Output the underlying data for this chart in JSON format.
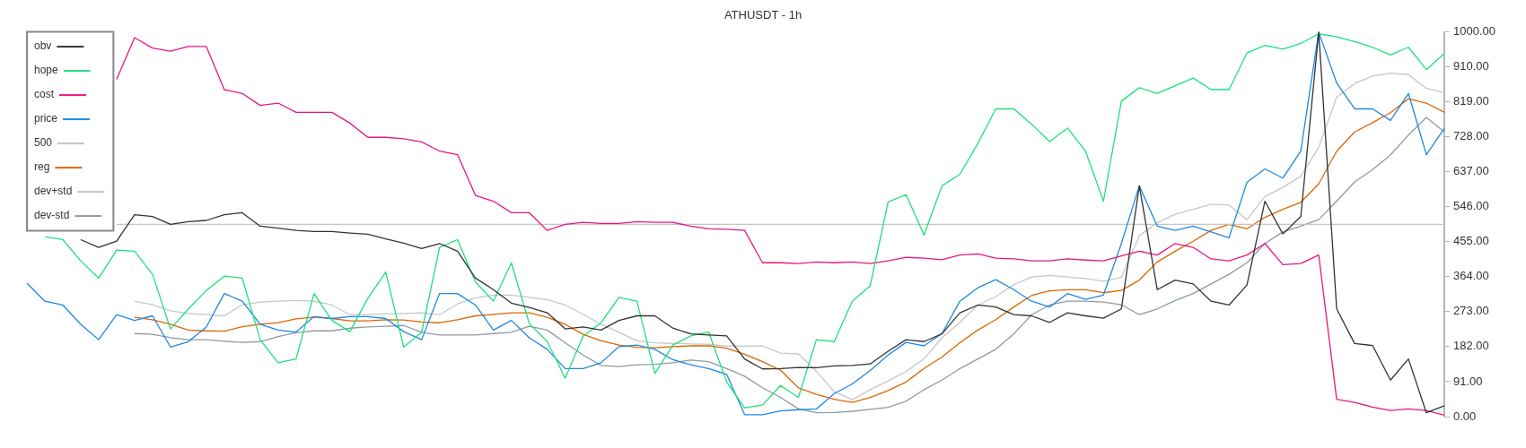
{
  "chart_data": {
    "type": "line",
    "title": "ATHUSDT - 1h",
    "categories": [
      null,
      null,
      null,
      null,
      null,
      null,
      null,
      null,
      null,
      null,
      null,
      null,
      null,
      null,
      null,
      null,
      null,
      null,
      null,
      null,
      null,
      null,
      null,
      null,
      null,
      null,
      null,
      null,
      null,
      null,
      null,
      null,
      null,
      null,
      null,
      null,
      null,
      null,
      null,
      null,
      null,
      null,
      null,
      null,
      null,
      null,
      null,
      null,
      null,
      null,
      null,
      null,
      null,
      null,
      null,
      null,
      null,
      null,
      null,
      null,
      null,
      null,
      null,
      null,
      null,
      null,
      null,
      null,
      null,
      null,
      null,
      null,
      null,
      null,
      null,
      null,
      null,
      null,
      null,
      null
    ],
    "series": [
      {
        "name": "obv",
        "color": "#333333",
        "values": [
          null,
          null,
          null,
          460,
          440,
          456,
          525,
          520,
          500,
          507,
          510,
          525,
          530,
          495,
          490,
          484,
          481,
          481,
          477,
          474,
          462,
          451,
          437,
          450,
          430,
          360,
          330,
          295,
          284,
          270,
          228,
          233,
          225,
          250,
          262,
          262,
          230,
          215,
          212,
          210,
          150,
          124,
          125,
          128,
          127,
          132,
          133,
          137,
          170,
          200,
          195,
          215,
          270,
          290,
          285,
          265,
          262,
          245,
          270,
          262,
          256,
          280,
          600,
          330,
          355,
          345,
          300,
          290,
          342,
          560,
          475,
          520,
          1000,
          280,
          190,
          185,
          95,
          150,
          10,
          28
        ]
      },
      {
        "name": "hope",
        "color": "#1fe07a",
        "values": [
          null,
          467,
          460,
          405,
          360,
          433,
          430,
          370,
          228,
          280,
          328,
          365,
          360,
          200,
          140,
          150,
          320,
          250,
          221,
          307,
          376,
          181,
          219,
          440,
          460,
          350,
          300,
          400,
          242,
          195,
          100,
          209,
          244,
          310,
          300,
          112,
          186,
          210,
          220,
          90,
          23,
          30,
          81,
          50,
          200,
          195,
          300,
          340,
          558,
          577,
          472,
          600,
          630,
          710,
          800,
          800,
          760,
          715,
          750,
          690,
          560,
          820,
          855,
          840,
          860,
          880,
          850,
          850,
          945,
          965,
          955,
          970,
          995,
          987,
          975,
          960,
          940,
          960,
          902,
          944
        ]
      },
      {
        "name": "cost",
        "color": "#e8177f",
        "values": [
          null,
          null,
          null,
          null,
          null,
          877,
          985,
          958,
          950,
          962,
          962,
          850,
          840,
          809,
          815,
          791,
          791,
          791,
          763,
          726,
          726,
          722,
          714,
          690,
          681,
          575,
          560,
          530,
          530,
          484,
          500,
          505,
          502,
          502,
          507,
          505,
          505,
          495,
          488,
          487,
          484,
          400,
          400,
          398,
          402,
          400,
          402,
          398,
          405,
          414,
          412,
          408,
          420,
          423,
          412,
          410,
          405,
          405,
          410,
          407,
          405,
          418,
          430,
          420,
          450,
          440,
          410,
          405,
          420,
          450,
          395,
          398,
          420,
          45,
          37,
          25,
          16,
          20,
          16,
          4
        ]
      },
      {
        "name": "price",
        "color": "#1e88e5",
        "values": [
          347,
          300,
          290,
          240,
          200,
          265,
          250,
          262,
          181,
          195,
          233,
          320,
          300,
          240,
          225,
          220,
          260,
          255,
          260,
          260,
          255,
          221,
          200,
          320,
          320,
          290,
          225,
          250,
          205,
          175,
          125,
          125,
          140,
          182,
          186,
          175,
          148,
          135,
          125,
          110,
          5,
          5,
          15,
          18,
          20,
          60,
          85,
          120,
          160,
          193,
          184,
          216,
          300,
          335,
          356,
          330,
          300,
          285,
          320,
          305,
          316,
          450,
          600,
          495,
          484,
          495,
          480,
          465,
          609,
          644,
          620,
          690,
          1000,
          867,
          800,
          800,
          770,
          840,
          681,
          749
        ]
      },
      {
        "name": "500",
        "color": "#c4c4c4",
        "values": [
          null,
          null,
          null,
          null,
          null,
          500,
          500,
          500,
          500,
          500,
          500,
          500,
          500,
          500,
          500,
          500,
          500,
          500,
          500,
          500,
          500,
          500,
          500,
          500,
          500,
          500,
          500,
          500,
          500,
          500,
          500,
          500,
          500,
          500,
          500,
          500,
          500,
          500,
          500,
          500,
          500,
          500,
          500,
          500,
          500,
          500,
          500,
          500,
          500,
          500,
          500,
          500,
          500,
          500,
          500,
          500,
          500,
          500,
          500,
          500,
          500,
          500,
          500,
          500,
          500,
          500,
          500,
          500,
          500,
          500,
          500,
          500,
          500,
          500,
          500,
          500,
          500,
          500,
          500,
          500
        ]
      },
      {
        "name": "reg",
        "color": "#dd6600",
        "values": [
          null,
          null,
          null,
          null,
          null,
          null,
          258,
          252,
          240,
          225,
          223,
          222,
          234,
          240,
          244,
          254,
          259,
          255,
          249,
          249,
          252,
          251,
          246,
          244,
          252,
          262,
          266,
          270,
          270,
          258,
          240,
          214,
          197,
          186,
          180,
          179,
          182,
          184,
          184,
          178,
          162,
          143,
          121,
          75,
          58,
          45,
          37,
          50,
          68,
          90,
          125,
          155,
          192,
          225,
          252,
          285,
          315,
          327,
          330,
          330,
          322,
          328,
          355,
          402,
          430,
          456,
          484,
          500,
          488,
          518,
          539,
          557,
          605,
          690,
          740,
          764,
          790,
          826,
          815,
          791
        ]
      },
      {
        "name": "dev+std",
        "color": "#c3c8cd",
        "values": [
          null,
          null,
          null,
          null,
          null,
          null,
          300,
          291,
          275,
          268,
          265,
          262,
          291,
          298,
          300,
          302,
          300,
          290,
          265,
          265,
          267,
          268,
          270,
          265,
          293,
          309,
          316,
          316,
          310,
          304,
          290,
          266,
          240,
          219,
          197,
          192,
          190,
          189,
          188,
          184,
          183,
          184,
          165,
          163,
          118,
          65,
          44,
          70,
          93,
          117,
          150,
          205,
          245,
          290,
          312,
          343,
          363,
          367,
          363,
          359,
          352,
          362,
          470,
          504,
          526,
          539,
          552,
          550,
          512,
          572,
          596,
          625,
          700,
          830,
          866,
          885,
          893,
          889,
          853,
          842
        ]
      },
      {
        "name": "dev-std",
        "color": "#8f9aa3",
        "values": [
          null,
          null,
          null,
          null,
          null,
          null,
          216,
          214,
          205,
          200,
          200,
          196,
          193,
          195,
          208,
          218,
          223,
          223,
          230,
          233,
          235,
          237,
          219,
          212,
          212,
          212,
          216,
          219,
          235,
          225,
          192,
          160,
          133,
          130,
          135,
          136,
          140,
          147,
          143,
          125,
          105,
          75,
          50,
          20,
          10,
          11,
          14,
          19,
          24,
          40,
          70,
          95,
          125,
          150,
          175,
          215,
          265,
          290,
          300,
          300,
          298,
          291,
          265,
          280,
          302,
          320,
          345,
          370,
          400,
          450,
          480,
          495,
          512,
          560,
          610,
          642,
          680,
          732,
          778,
          740
        ]
      }
    ],
    "ylim": [
      0,
      1000
    ],
    "yticks": [
      {
        "value": 0,
        "label": "0.00"
      },
      {
        "value": 91,
        "label": "91.00"
      },
      {
        "value": 182,
        "label": "182.00"
      },
      {
        "value": 273,
        "label": "273.00"
      },
      {
        "value": 364,
        "label": "364.00"
      },
      {
        "value": 455,
        "label": "455.00"
      },
      {
        "value": 546,
        "label": "546.00"
      },
      {
        "value": 637,
        "label": "637.00"
      },
      {
        "value": 728,
        "label": "728.00"
      },
      {
        "value": 819,
        "label": "819.00"
      },
      {
        "value": 910,
        "label": "910.00"
      },
      {
        "value": 1000,
        "label": "1000.00"
      }
    ],
    "tick_labels": "y",
    "grid": false,
    "legend": "top left"
  }
}
